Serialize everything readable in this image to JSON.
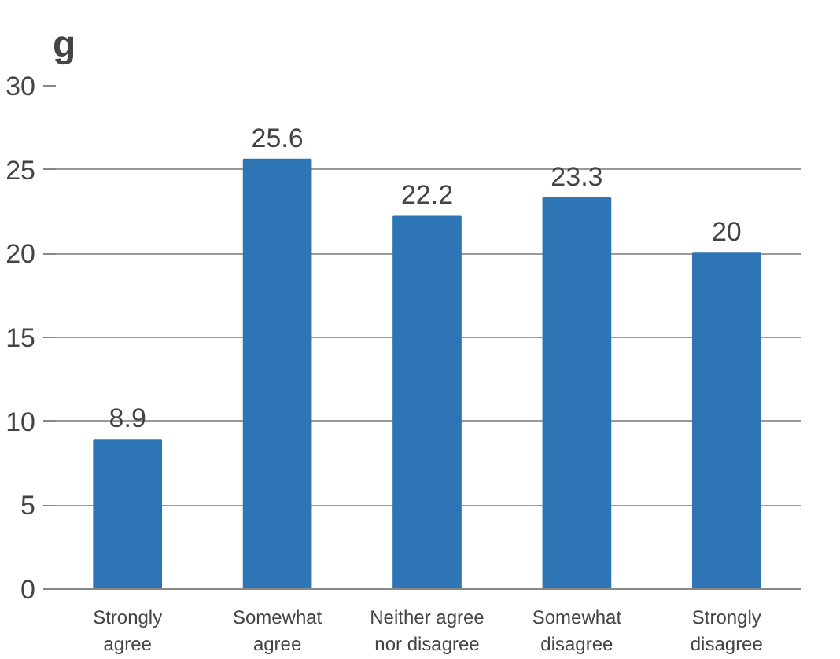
{
  "chart_data": {
    "type": "bar",
    "title": "g",
    "categories": [
      "Strongly agree",
      "Somewhat agree",
      "Neither agree nor disagree",
      "Somewhat disagree",
      "Strongly disagree"
    ],
    "values": [
      8.9,
      25.6,
      22.2,
      23.3,
      20
    ],
    "color": "#2e75b6",
    "ylim": [
      0,
      30
    ],
    "yticks": [
      0,
      5,
      10,
      15,
      20,
      25,
      30
    ],
    "grid": "y",
    "data_labels": true
  }
}
